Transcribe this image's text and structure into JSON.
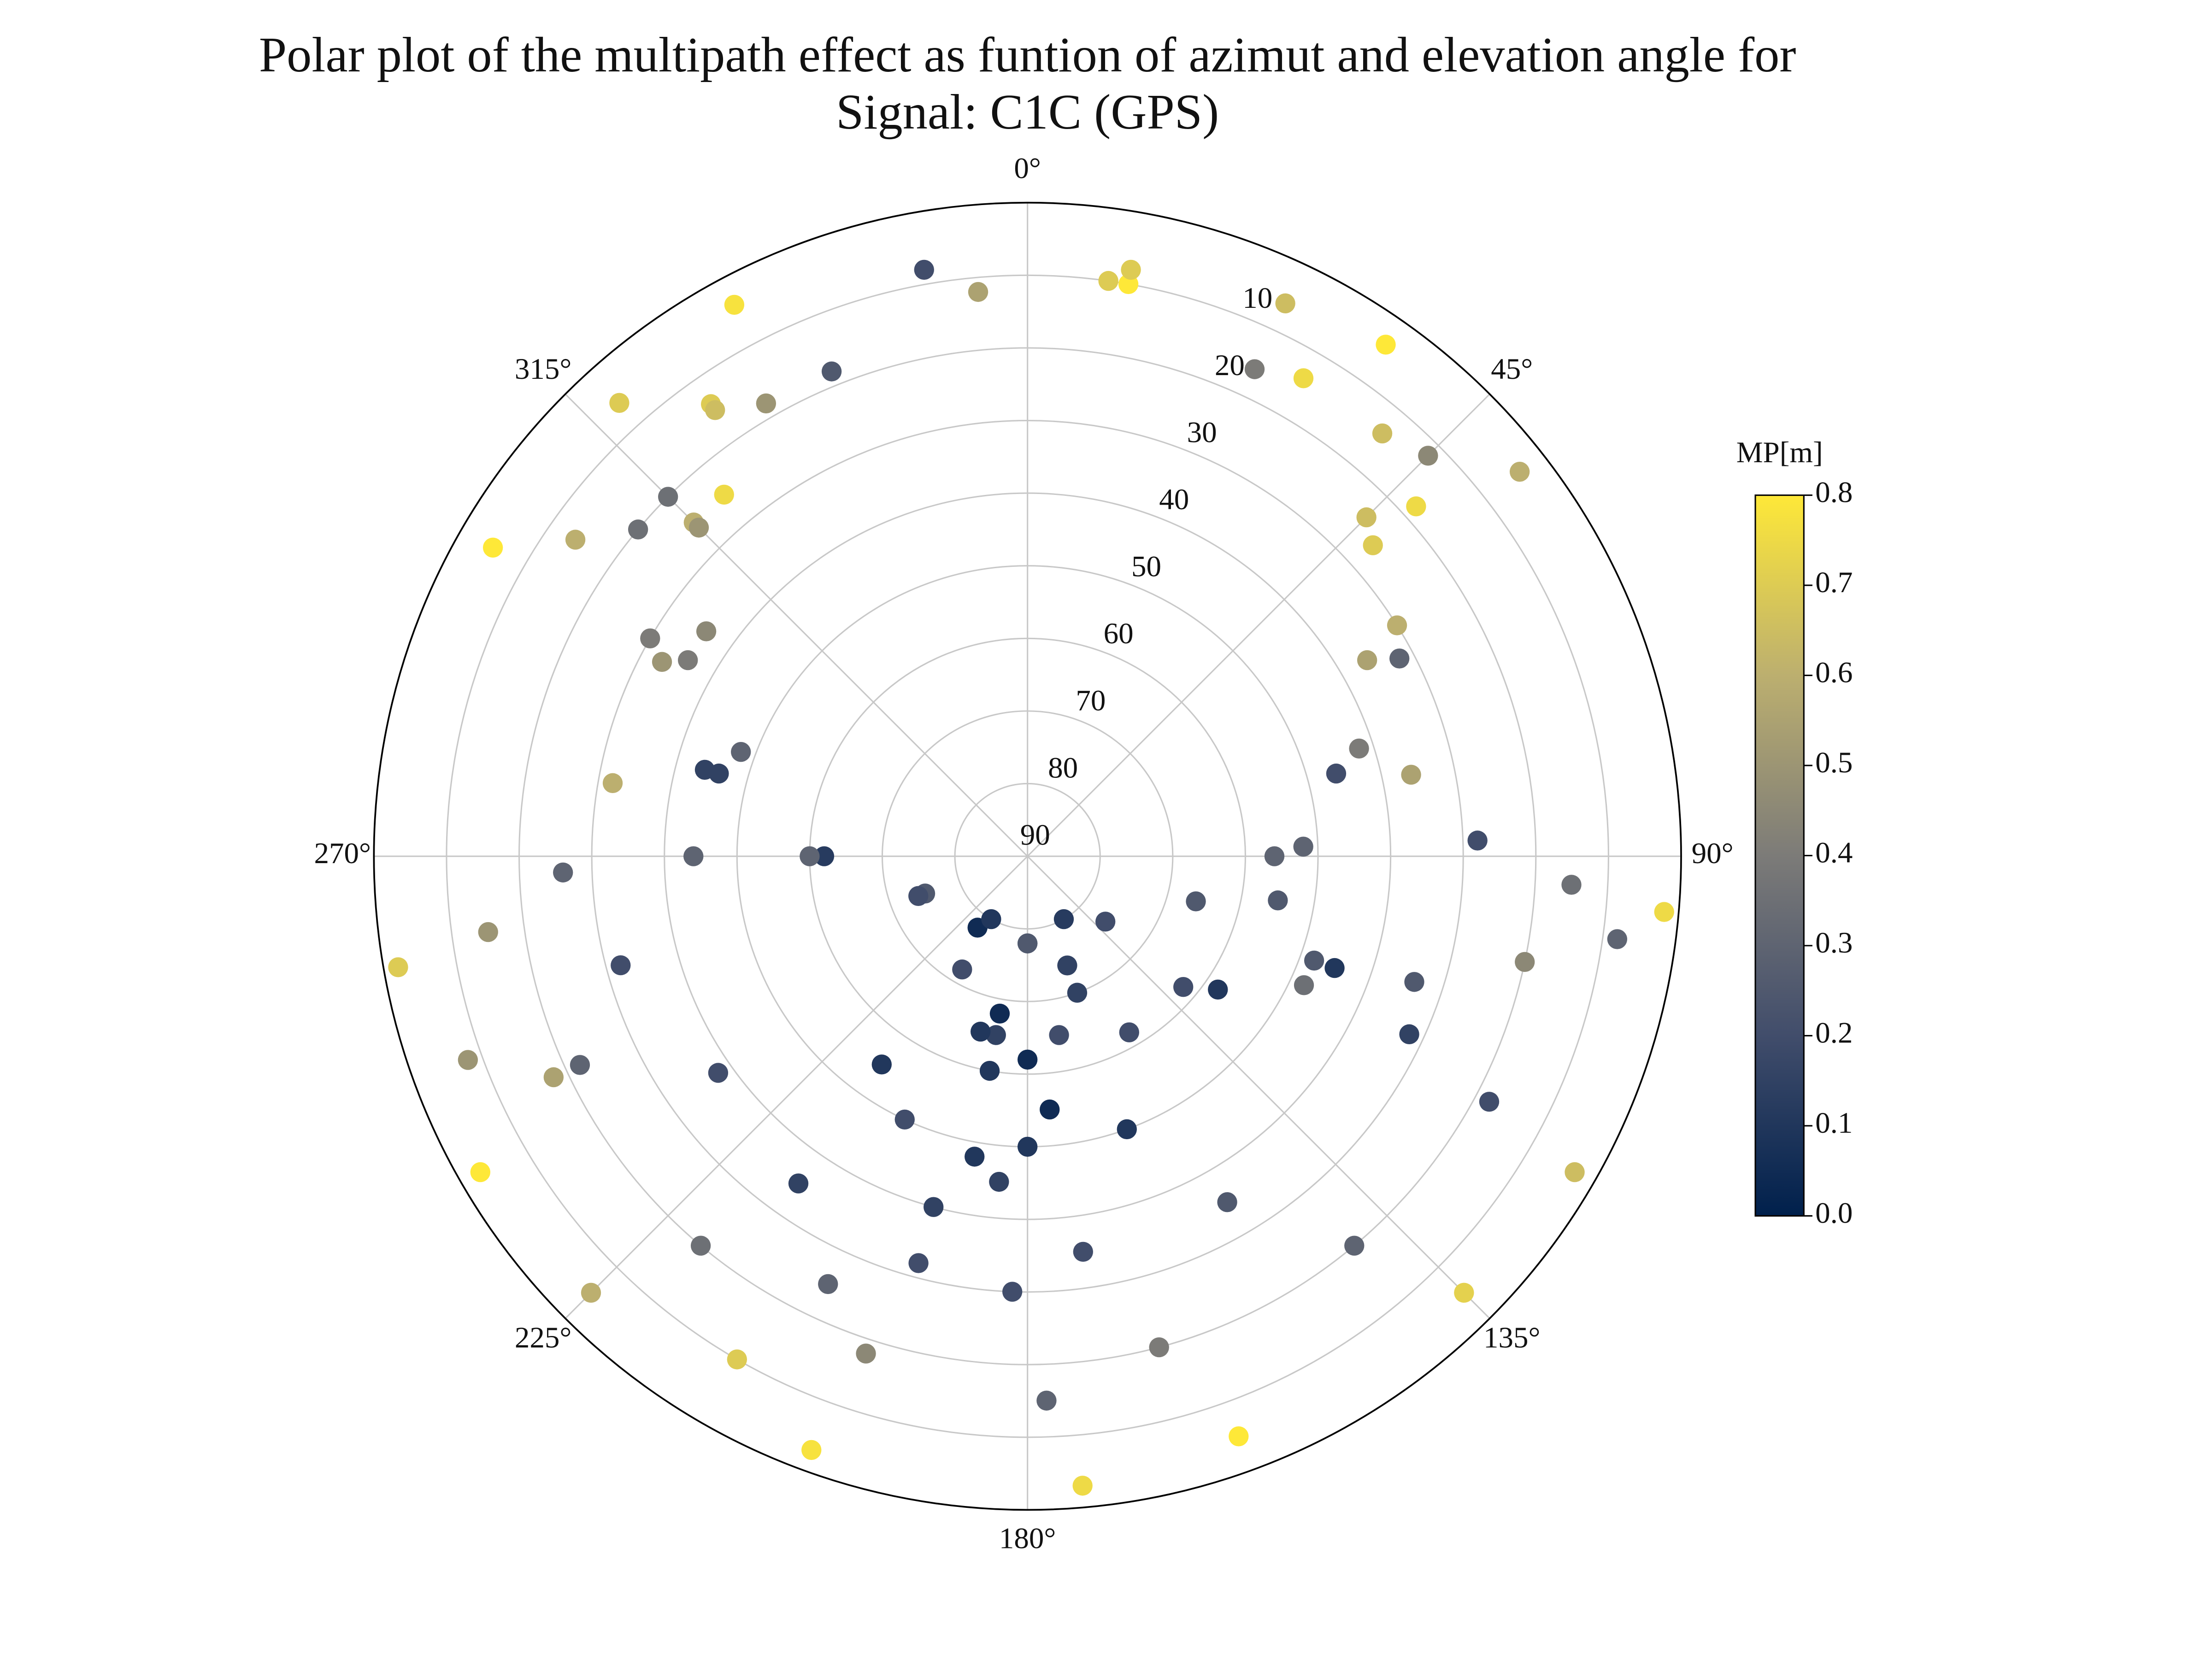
{
  "chart_data": {
    "type": "polar_scatter",
    "title": [
      "Polar plot of the multipath effect as funtion of azimut and elevation angle for",
      "Signal: C1C (GPS)"
    ],
    "theta_zero": "N",
    "theta_direction": "clockwise",
    "xlim": [
      0,
      360
    ],
    "xticks": [
      {
        "value": 0,
        "label": "0°"
      },
      {
        "value": 45,
        "label": "45°"
      },
      {
        "value": 90,
        "label": "90°"
      },
      {
        "value": 135,
        "label": "135°"
      },
      {
        "value": 180,
        "label": "180°"
      },
      {
        "value": 225,
        "label": "225°"
      },
      {
        "value": 270,
        "label": "270°"
      },
      {
        "value": 315,
        "label": "315°"
      }
    ],
    "ylim": [
      90,
      0
    ],
    "yticks": [
      10,
      20,
      30,
      40,
      50,
      60,
      70,
      80,
      90
    ],
    "grid": true,
    "x": [
      175,
      178,
      182,
      185,
      190,
      210,
      250,
      270,
      290,
      305,
      315,
      325,
      332,
      160,
      165,
      172,
      180,
      190,
      215,
      250,
      270,
      285,
      298,
      310,
      318,
      200,
      198,
      195,
      190,
      180,
      160,
      130,
      105,
      90,
      75,
      60,
      48,
      40,
      35,
      135,
      140,
      150,
      160,
      170,
      180,
      210,
      225,
      220,
      215,
      205,
      195,
      180,
      150,
      260,
      262,
      268,
      280,
      300,
      320,
      338,
      355,
      10,
      25,
      95,
      93,
      88,
      78,
      62,
      45,
      25,
      8,
      250,
      245,
      235,
      215,
      190,
      160,
      130,
      115,
      108,
      102,
      98,
      300,
      305,
      315,
      330,
      350,
      10,
      30,
      45,
      52,
      120,
      118,
      115,
      110,
      100,
      88,
      72,
      58,
      48,
      240,
      245,
      255,
      270,
      285,
      300,
      315,
      325,
      210,
      205,
      195,
      175,
      150,
      125,
      110
    ],
    "y": [
      3,
      15,
      30,
      45,
      60,
      72,
      75,
      62,
      48,
      36,
      25,
      14,
      4,
      5,
      20,
      35,
      50,
      65,
      78,
      74,
      60,
      46,
      33,
      20,
      6,
      3,
      18,
      32,
      48,
      62,
      74,
      76,
      66,
      56,
      46,
      36,
      26,
      14,
      4,
      5,
      20,
      35,
      50,
      65,
      78,
      80,
      5,
      20,
      35,
      50,
      65,
      78,
      80,
      2,
      15,
      26,
      32,
      30,
      25,
      18,
      12,
      10,
      6,
      2,
      15,
      28,
      36,
      32,
      24,
      16,
      10,
      8,
      22,
      38,
      55,
      68,
      70,
      62,
      48,
      34,
      20,
      8,
      5,
      14,
      20,
      18,
      8,
      8,
      14,
      12,
      4,
      3,
      18,
      32,
      45,
      55,
      52,
      42,
      30,
      18,
      3,
      18,
      32,
      44,
      44,
      36,
      26,
      15,
      10,
      25,
      40,
      55,
      62,
      58,
      48
    ],
    "values": [
      0.75,
      0.3,
      0.2,
      0.15,
      0.1,
      0.2,
      0.25,
      0.12,
      0.3,
      0.45,
      0.6,
      0.7,
      0.78,
      0.8,
      0.4,
      0.2,
      0.1,
      0.15,
      0.05,
      0.2,
      0.3,
      0.15,
      0.5,
      0.35,
      0.7,
      0.78,
      0.45,
      0.2,
      0.1,
      0.05,
      0.15,
      0.2,
      0.25,
      0.3,
      0.2,
      0.55,
      0.7,
      0.65,
      0.8,
      0.72,
      0.3,
      0.25,
      0.1,
      0.2,
      0.15,
      0.1,
      0.6,
      0.35,
      0.15,
      0.2,
      0.1,
      0.25,
      0.12,
      0.7,
      0.5,
      0.3,
      0.6,
      0.4,
      0.75,
      0.25,
      0.55,
      0.8,
      0.65,
      0.75,
      0.35,
      0.2,
      0.55,
      0.3,
      0.65,
      0.4,
      0.7,
      0.5,
      0.3,
      0.2,
      0.1,
      0.05,
      0.15,
      0.2,
      0.35,
      0.25,
      0.45,
      0.3,
      0.8,
      0.6,
      0.35,
      0.5,
      0.2,
      0.7,
      0.75,
      0.45,
      0.6,
      0.65,
      0.2,
      0.15,
      0.1,
      0.25,
      0.3,
      0.4,
      0.6,
      0.75,
      0.8,
      0.55,
      0.2,
      0.3,
      0.15,
      0.4,
      0.5,
      0.65,
      0.7,
      0.3,
      0.15,
      0.05,
      0.2,
      0.1,
      0.25
    ],
    "colormap": [
      "#00204c",
      "#414d6b",
      "#7c7b78",
      "#bcaf6f",
      "#fee838"
    ],
    "colorbar": {
      "label": "MP[m]",
      "clim": [
        0,
        0.8
      ],
      "ticks": [
        {
          "value": 0,
          "label": "0.0"
        },
        {
          "value": 0.1,
          "label": "0.1"
        },
        {
          "value": 0.2,
          "label": "0.2"
        },
        {
          "value": 0.3,
          "label": "0.3"
        },
        {
          "value": 0.4,
          "label": "0.4"
        },
        {
          "value": 0.5,
          "label": "0.5"
        },
        {
          "value": 0.6,
          "label": "0.6"
        },
        {
          "value": 0.7,
          "label": "0.7"
        },
        {
          "value": 0.8,
          "label": "0.8"
        }
      ]
    }
  }
}
